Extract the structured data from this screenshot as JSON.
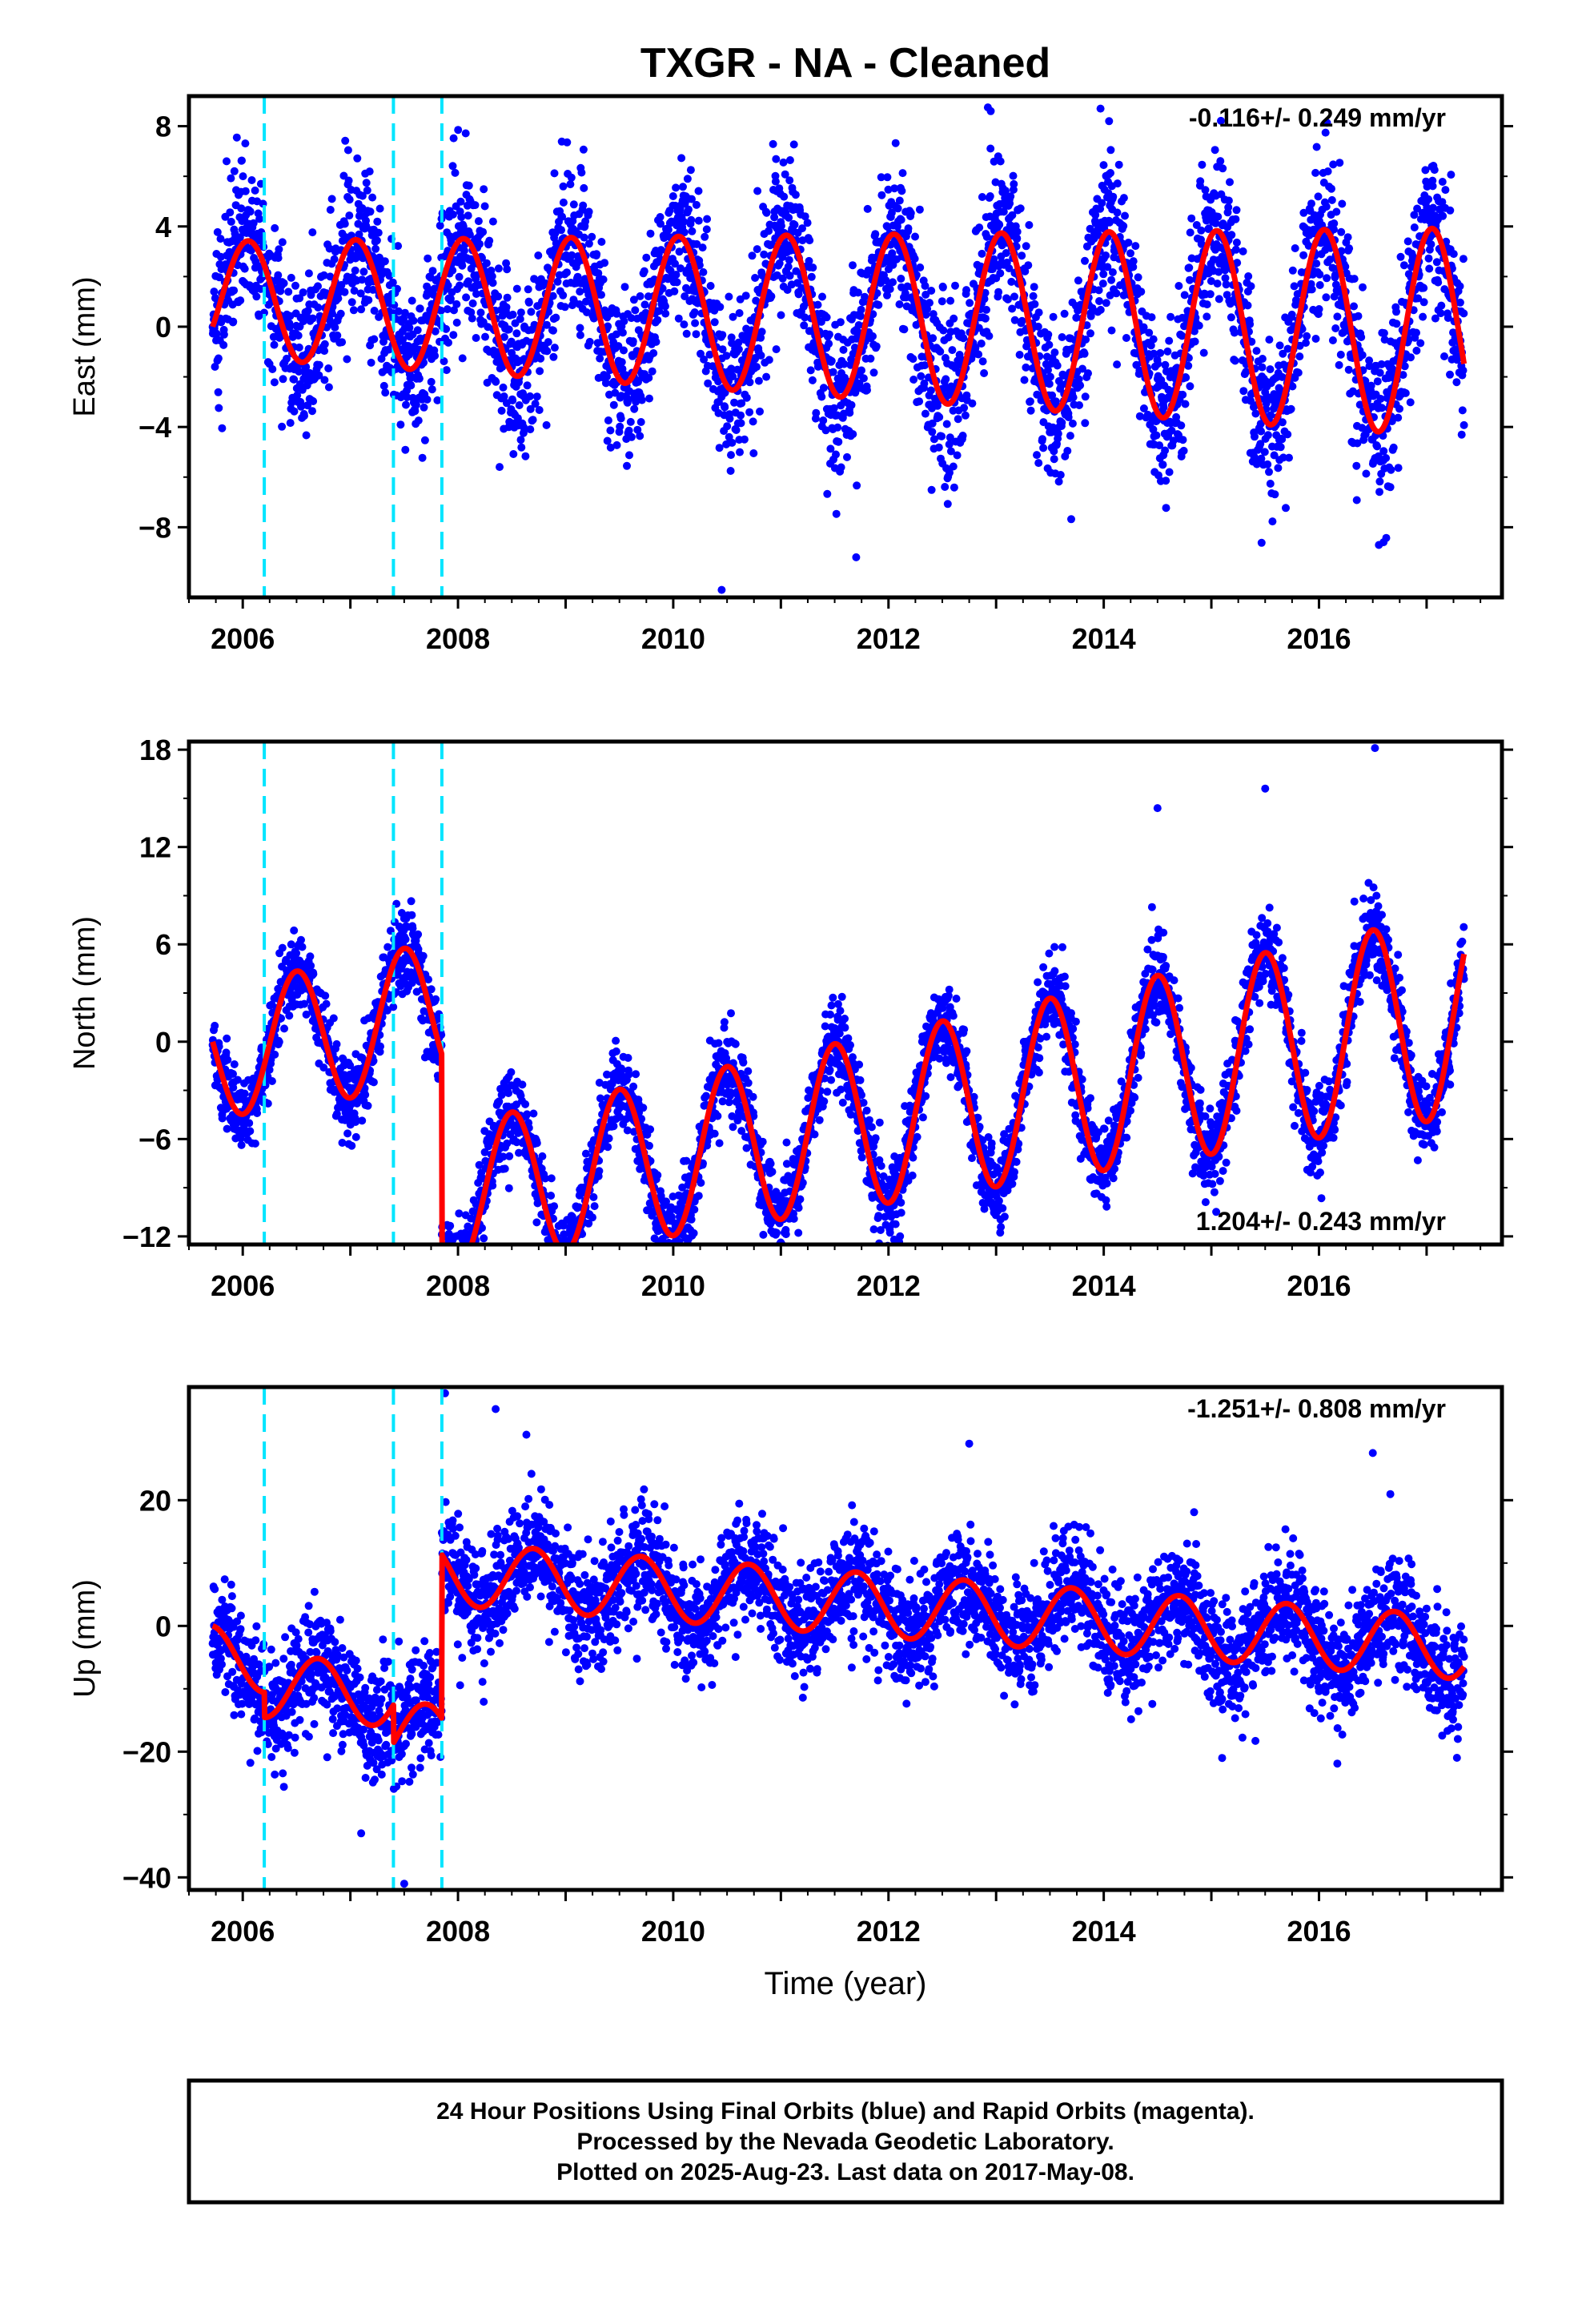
{
  "title": "TXGR  - NA - Cleaned",
  "xlabel": "Time (year)",
  "colors": {
    "points": "#0000ff",
    "model": "#ff0000",
    "offsets": "#00e5ff",
    "frame": "#000000"
  },
  "footer": {
    "line1": "24 Hour Positions Using Final Orbits (blue) and Rapid Orbits (magenta).",
    "line2": "Processed by the Nevada Geodetic Laboratory.",
    "line3": "Plotted on 2025-Aug-23. Last data on 2017-May-08."
  },
  "chart_data": [
    {
      "type": "scatter",
      "panel": "east",
      "ylabel": "East (mm)",
      "rate": "-0.116+/- 0.249 mm/yr",
      "rate_position": "top-right",
      "xlim": [
        2005.5,
        2017.7
      ],
      "ylim": [
        -10.8,
        9.2
      ],
      "xticks": [
        2006,
        2008,
        2010,
        2012,
        2014,
        2016
      ],
      "xtick_labels": [
        "2006",
        "2008",
        "2010",
        "2012",
        "2014",
        "2016"
      ],
      "yticks": [
        8,
        4,
        0,
        -4,
        -8
      ],
      "ytick_labels": [
        "8",
        "4",
        "0",
        "−4",
        "−8"
      ],
      "offsets": [
        2006.2,
        2007.4,
        2007.85
      ],
      "model": {
        "rate": -0.116,
        "annual_amp": 2.3,
        "annual_peak": 2007.05,
        "amp_growth": 0.07,
        "offsets": []
      },
      "data_range": [
        2005.72,
        2017.35
      ],
      "scatter_sd": 1.6,
      "extremes": [
        [
          2010.45,
          -10.5
        ],
        [
          2013.97,
          8.7
        ],
        [
          2014.05,
          8.2
        ],
        [
          2012.95,
          8.6
        ],
        [
          2016.6,
          -8.6
        ],
        [
          2005.85,
          6.6
        ],
        [
          2011.7,
          -9.2
        ]
      ]
    },
    {
      "type": "scatter",
      "panel": "north",
      "ylabel": "North (mm)",
      "rate": "1.204+/- 0.243 mm/yr",
      "rate_position": "bottom-right",
      "xlim": [
        2005.5,
        2017.7
      ],
      "ylim": [
        -12.5,
        18.5
      ],
      "xticks": [
        2006,
        2008,
        2010,
        2012,
        2014,
        2016
      ],
      "xtick_labels": [
        "2006",
        "2008",
        "2010",
        "2012",
        "2014",
        "2016"
      ],
      "yticks": [
        18,
        12,
        6,
        0,
        -6,
        -12
      ],
      "ytick_labels": [
        "18",
        "12",
        "6",
        "0",
        "−6",
        "−12"
      ],
      "offsets": [
        2006.2,
        2007.4,
        2007.85
      ],
      "model": {
        "rate": 1.204,
        "annual_amp": 4.0,
        "annual_peak": 2007.5,
        "amp_growth": 0.05,
        "base": -1.0,
        "offsets": [
          [
            2007.85,
            -11.5
          ]
        ]
      },
      "data_range": [
        2005.72,
        2017.35
      ],
      "scatter_sd": 1.3,
      "extremes": [
        [
          2016.52,
          18.1
        ],
        [
          2015.5,
          15.6
        ],
        [
          2008.9,
          -11.8
        ],
        [
          2007.9,
          -12.0
        ],
        [
          2014.5,
          14.4
        ]
      ]
    },
    {
      "type": "scatter",
      "panel": "up",
      "ylabel": "Up (mm)",
      "rate": "-1.251+/- 0.808 mm/yr",
      "rate_position": "top-right",
      "xlim": [
        2005.5,
        2017.7
      ],
      "ylim": [
        -42,
        38
      ],
      "xticks": [
        2006,
        2008,
        2010,
        2012,
        2014,
        2016
      ],
      "xtick_labels": [
        "2006",
        "2008",
        "2010",
        "2012",
        "2014",
        "2016"
      ],
      "yticks": [
        20,
        0,
        -20,
        -40
      ],
      "ytick_labels": [
        "20",
        "0",
        "−20",
        "−40"
      ],
      "offsets": [
        2006.2,
        2007.4,
        2007.85
      ],
      "model": {
        "rate": -1.251,
        "annual_amp": 5.0,
        "annual_peak": 2008.7,
        "amp_growth": 0,
        "base": -2.0,
        "offsets": [
          [
            2006.2,
            -4
          ],
          [
            2007.4,
            -6
          ],
          [
            2007.85,
            26
          ]
        ]
      },
      "data_range": [
        2005.72,
        2017.35
      ],
      "scatter_sd": 4.5,
      "extremes": [
        [
          2007.88,
          37
        ],
        [
          2008.35,
          34.5
        ],
        [
          2007.5,
          -41
        ],
        [
          2012.75,
          29
        ],
        [
          2016.5,
          27.5
        ],
        [
          2015.1,
          -21
        ],
        [
          2007.1,
          -33
        ]
      ]
    }
  ]
}
